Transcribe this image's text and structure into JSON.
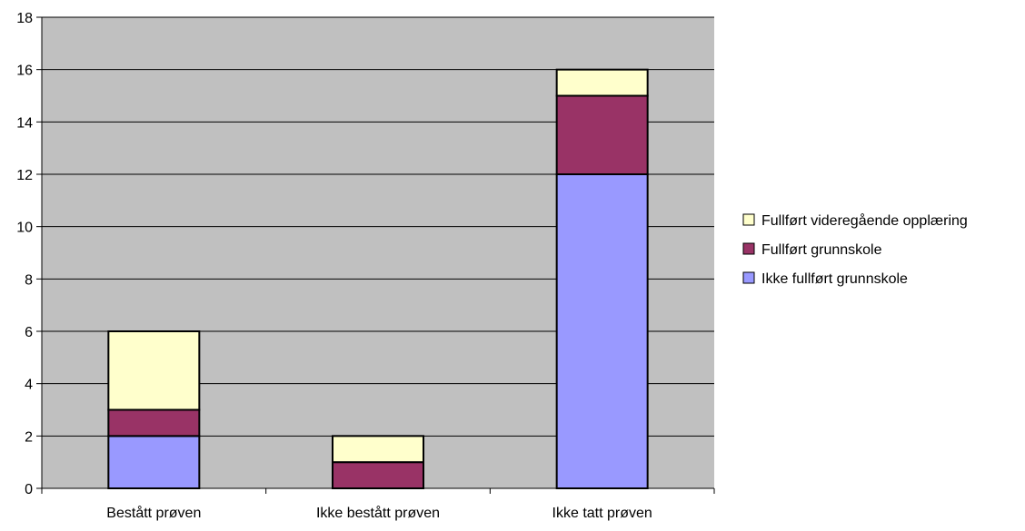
{
  "chart_data": {
    "type": "bar",
    "stacked": true,
    "categories": [
      "Bestått prøven",
      "Ikke bestått prøven",
      "Ikke tatt prøven"
    ],
    "series": [
      {
        "name": "Ikke fullført grunnskole",
        "values": [
          2,
          0,
          12
        ],
        "color": "#9999FF"
      },
      {
        "name": "Fullført grunnskole",
        "values": [
          1,
          1,
          3
        ],
        "color": "#993366"
      },
      {
        "name": "Fullført videregående opplæring",
        "values": [
          3,
          1,
          1
        ],
        "color": "#FFFFCC"
      }
    ],
    "legend_order": [
      2,
      1,
      0
    ],
    "title": "",
    "xlabel": "",
    "ylabel": "",
    "ylim": [
      0,
      18
    ],
    "yticks": [
      "0",
      "2",
      "4",
      "6",
      "8",
      "10",
      "12",
      "14",
      "16",
      "18"
    ],
    "grid": true,
    "legend_position": "right",
    "plot_background": "#C0C0C0",
    "gridline_color": "#000000"
  }
}
